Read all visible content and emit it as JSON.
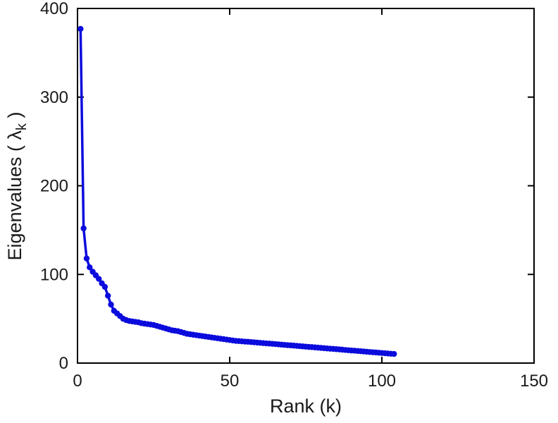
{
  "figure": {
    "background_color": "#ffffff",
    "axes_color": "#000000",
    "tick_text_color": "#1a1a1a"
  },
  "chart_data": {
    "type": "line",
    "title": "",
    "xlabel": "Rank (k)",
    "ylabel": "Eigenvalues ( λk )",
    "ylabel_parts": {
      "prefix": "Eigenvalues ( ",
      "symbol": "λ",
      "subscript": "k",
      "suffix": " )"
    },
    "xlim": [
      0,
      150
    ],
    "ylim": [
      0,
      400
    ],
    "xticks": [
      0,
      50,
      100,
      150
    ],
    "xtick_labels": [
      "0",
      "50",
      "100",
      "150"
    ],
    "yticks": [
      0,
      100,
      200,
      300,
      400
    ],
    "ytick_labels": [
      "0",
      "100",
      "200",
      "300",
      "400"
    ],
    "grid": false,
    "legend": null,
    "box": true,
    "line_color": "#0b0bdd",
    "marker": "circle",
    "marker_color": "#0b0bdd",
    "n_points": 104,
    "x": [
      1,
      2,
      3,
      4,
      5,
      6,
      7,
      8,
      9,
      10,
      11,
      12,
      13,
      14,
      15,
      16,
      17,
      18,
      19,
      20,
      21,
      22,
      23,
      24,
      25,
      26,
      27,
      28,
      29,
      30,
      31,
      32,
      33,
      34,
      35,
      36,
      37,
      38,
      39,
      40,
      41,
      42,
      43,
      44,
      45,
      46,
      47,
      48,
      49,
      50,
      51,
      52,
      53,
      54,
      55,
      56,
      57,
      58,
      59,
      60,
      61,
      62,
      63,
      64,
      65,
      66,
      67,
      68,
      69,
      70,
      71,
      72,
      73,
      74,
      75,
      76,
      77,
      78,
      79,
      80,
      81,
      82,
      83,
      84,
      85,
      86,
      87,
      88,
      89,
      90,
      91,
      92,
      93,
      94,
      95,
      96,
      97,
      98,
      99,
      100,
      101,
      102,
      103,
      104
    ],
    "y": [
      377,
      152,
      118,
      108,
      103,
      99,
      95,
      90,
      86,
      76,
      66,
      59,
      56,
      53,
      50,
      48.5,
      47.5,
      47,
      46.5,
      46,
      45,
      44.5,
      44,
      43.5,
      43,
      42,
      41,
      40,
      39,
      38,
      37,
      36.5,
      36,
      35,
      34,
      33,
      32.5,
      32,
      31.5,
      31,
      30.5,
      30,
      29.5,
      29,
      28.5,
      28,
      27.5,
      27,
      26.5,
      26,
      25.5,
      25,
      24.8,
      24.5,
      24.2,
      24,
      23.7,
      23.4,
      23.1,
      22.8,
      22.5,
      22.2,
      22,
      21.7,
      21.4,
      21.1,
      20.8,
      20.5,
      20.2,
      20,
      19.7,
      19.4,
      19.1,
      18.8,
      18.5,
      18.2,
      18,
      17.7,
      17.4,
      17.1,
      16.8,
      16.5,
      16.2,
      16,
      15.7,
      15.4,
      15.1,
      14.8,
      14.5,
      14.2,
      14,
      13.7,
      13.4,
      13.1,
      12.8,
      12.5,
      12.2,
      12,
      11.7,
      11.4,
      11.1,
      10.8,
      10.5,
      10.3
    ]
  }
}
